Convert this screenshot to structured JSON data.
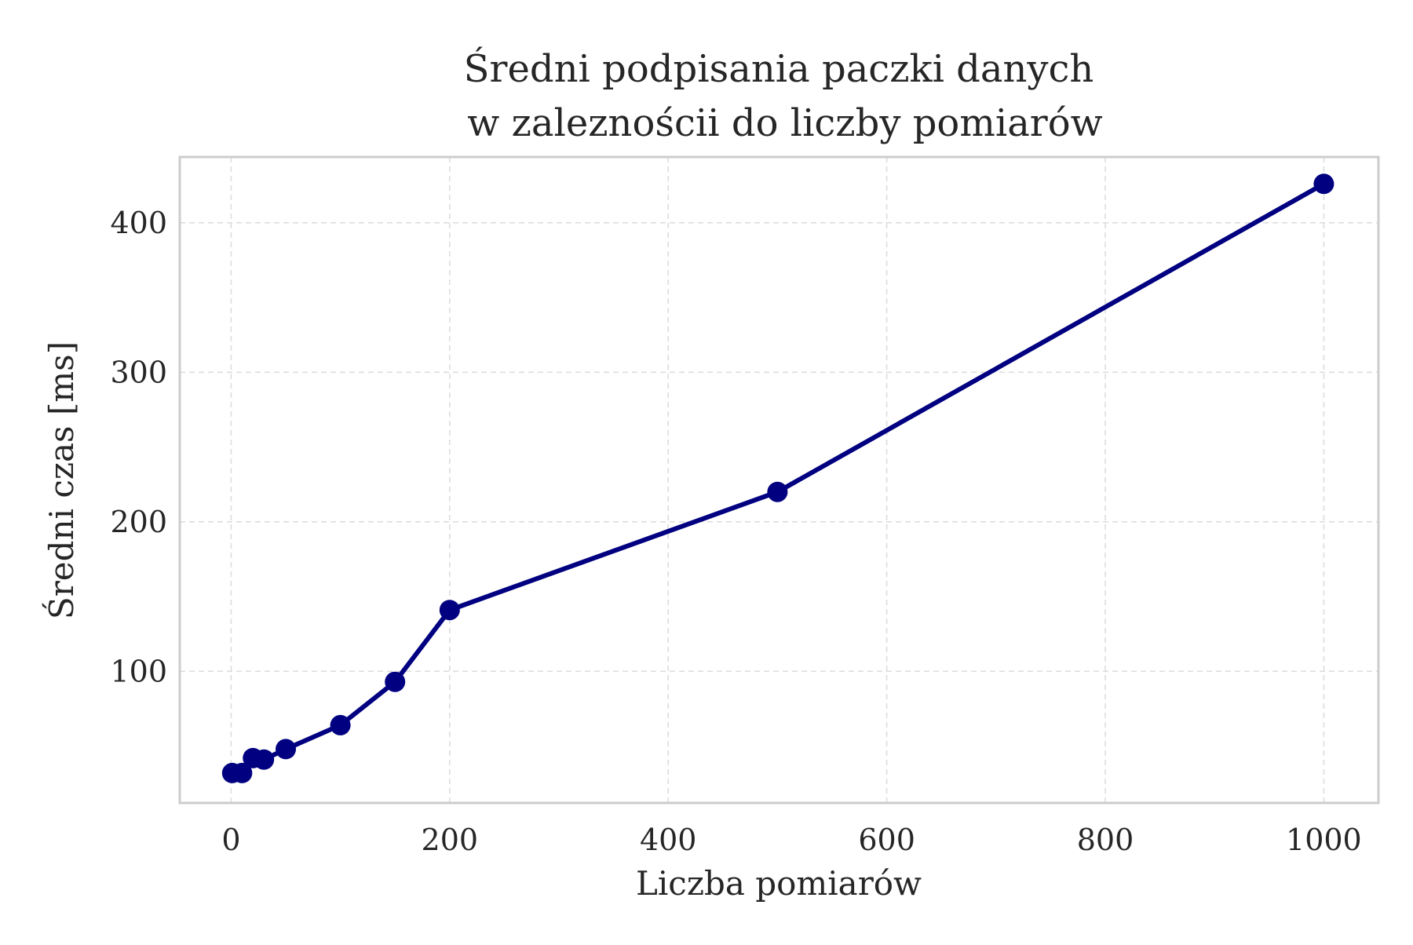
{
  "chart_data": {
    "type": "line",
    "title": "Średni podpisania paczki danych\n w zaleznościi do liczby pomiarów",
    "title_lines": [
      "Średni podpisania paczki danych",
      "w zaleznościi do liczby pomiarów"
    ],
    "xlabel": "Liczba pomiarów",
    "ylabel": "Średni czas [ms]",
    "xlim": [
      -47,
      1050
    ],
    "ylim": [
      12,
      444
    ],
    "x_ticks": [
      0,
      200,
      400,
      800,
      1000
    ],
    "x_ticks_all": [
      0,
      200,
      400,
      600,
      800,
      1000
    ],
    "y_ticks": [
      100,
      200,
      300,
      400
    ],
    "grid": true,
    "legend": "none",
    "series": [
      {
        "x": [
          1,
          10,
          20,
          30,
          50,
          100,
          150,
          200,
          500,
          1000
        ],
        "y": [
          32,
          32,
          42,
          41,
          48,
          64,
          93,
          141,
          220,
          426
        ],
        "color": "#000080",
        "marker": "circle"
      }
    ],
    "colors": {
      "line": "#000080",
      "grid": "#dddddd",
      "frame": "#cccccc",
      "text": "#262626"
    }
  }
}
